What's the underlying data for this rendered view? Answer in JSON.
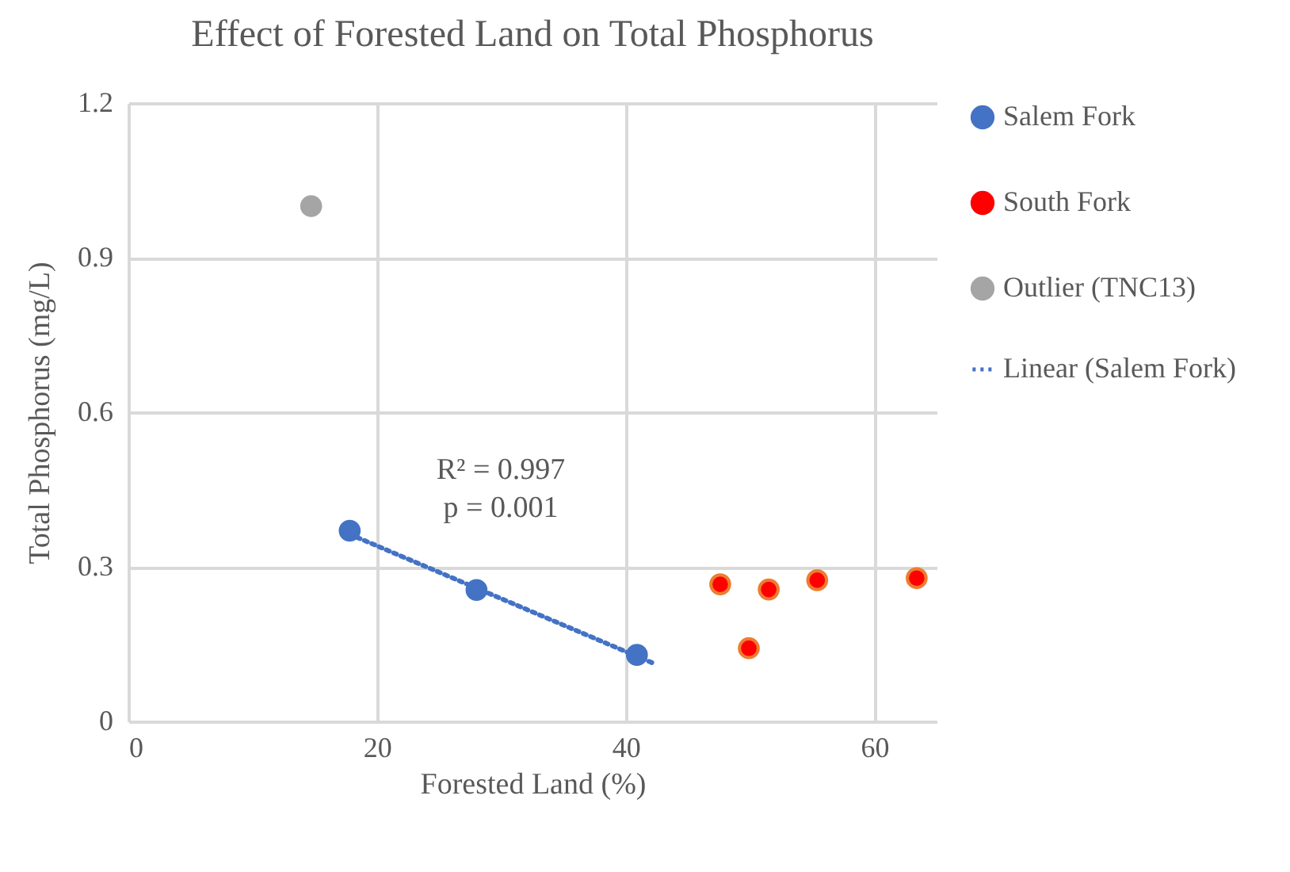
{
  "chart_data": {
    "type": "scatter",
    "title": "Effect of Forested Land on Total Phosphorus",
    "xlabel": "Forested Land (%)",
    "ylabel": "Total Phosphorus (mg/L)",
    "xlim": [
      0,
      65
    ],
    "xticks": [
      0,
      20,
      40,
      60
    ],
    "ylim": [
      0,
      1.2
    ],
    "yticks": [
      0,
      0.3,
      0.6,
      0.9,
      1.2
    ],
    "grid": true,
    "legend": "right",
    "marker": "circle",
    "annotations": [
      "R² = 0.997",
      "p = 0.001"
    ],
    "series": [
      {
        "name": "Salem Fork",
        "color": "#4472c4",
        "x": [
          17.8,
          28.0,
          40.9
        ],
        "values": [
          0.37,
          0.255,
          0.129
        ]
      },
      {
        "name": "South Fork",
        "color": "#ff0000",
        "x": [
          47.6,
          49.9,
          51.5,
          55.4,
          63.4
        ],
        "values": [
          0.266,
          0.142,
          0.256,
          0.274,
          0.278
        ]
      },
      {
        "name": "Outlier (TNC13)",
        "color": "#a5a5a5",
        "x": [
          14.7
        ],
        "values": [
          1.0
        ]
      },
      {
        "name": "Linear (Salem Fork)",
        "type": "line",
        "marker": "none",
        "line_style": "dotted",
        "color": "#4472c4",
        "x": [
          18.4,
          42.1
        ],
        "values": [
          0.357,
          0.114
        ]
      }
    ]
  }
}
